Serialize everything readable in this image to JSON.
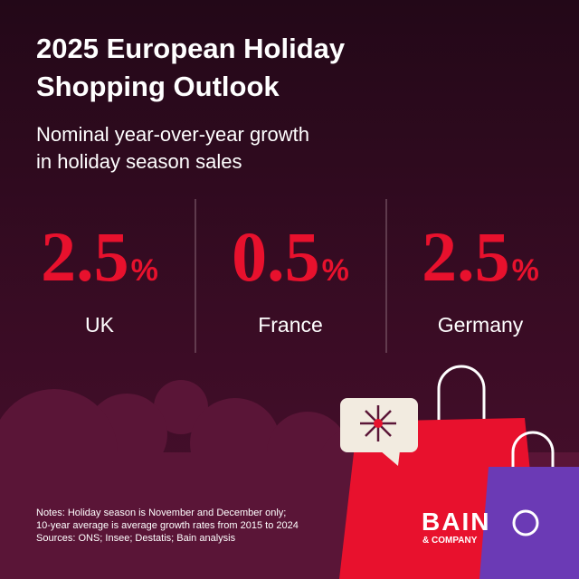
{
  "header": {
    "title_lines": [
      "2025 European Holiday",
      "Shopping Outlook"
    ],
    "subtitle_lines": [
      "Nominal year-over-year growth",
      "in holiday season sales"
    ]
  },
  "stats": [
    {
      "value": "2.5",
      "unit": "%",
      "label": "UK"
    },
    {
      "value": "0.5",
      "unit": "%",
      "label": "France"
    },
    {
      "value": "2.5",
      "unit": "%",
      "label": "Germany"
    }
  ],
  "notes": [
    "Notes: Holiday season is November and December only;",
    "10-year average is average growth rates from 2015 to 2024",
    "Sources: ONS; Insee; Destatis; Bain analysis"
  ],
  "logo": {
    "name": "BAIN",
    "sub": "& COMPANY"
  }
}
